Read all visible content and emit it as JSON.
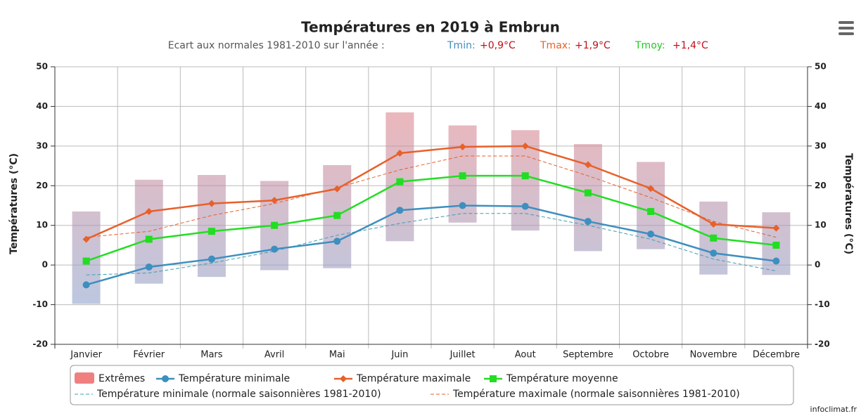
{
  "chart_data": {
    "type": "line",
    "title": "Températures en 2019 à Embrun",
    "subtitle": {
      "text": "Ecart aux normales 1981-2010 sur l'année :",
      "items": [
        {
          "label": "Tmin:",
          "value": "+0,9°C",
          "color": "#3d8fbf"
        },
        {
          "label": "Tmax:",
          "value": "+1,9°C",
          "color": "#e8602a"
        },
        {
          "label": "Tmoy:",
          "value": "+1,4°C",
          "color": "#22cc22"
        }
      ],
      "value_color": "#c0101a"
    },
    "y_label": "Températures (°C)",
    "y2_label": "Températures (°C)",
    "credit": "infoclimat.fr",
    "categories": [
      "Janvier",
      "Février",
      "Mars",
      "Avril",
      "Mai",
      "Juin",
      "Juillet",
      "Aout",
      "Septembre",
      "Octobre",
      "Novembre",
      "Décembre"
    ],
    "ylim": [
      -20,
      50
    ],
    "yticks": [
      -20,
      -10,
      0,
      10,
      20,
      30,
      40,
      50
    ],
    "y2lim": [
      -20,
      50
    ],
    "y2ticks": [
      -20,
      -10,
      0,
      10,
      20,
      30,
      40,
      50
    ],
    "grid": true,
    "extremes": {
      "name": "Extrêmes",
      "color_top": "#f08080",
      "color_bottom": "#7fa8d8",
      "low": [
        -9.8,
        -4.7,
        -3,
        -1.3,
        -0.8,
        6,
        10.7,
        8.7,
        3.5,
        4,
        -2.4,
        -2.5
      ],
      "high": [
        13.5,
        21.5,
        22.7,
        21.2,
        25.2,
        38.5,
        35.2,
        34,
        30.5,
        26,
        16,
        13.3
      ]
    },
    "series": [
      {
        "name": "Température minimale",
        "color": "#3d8fbf",
        "marker": "circle",
        "dashed": false,
        "values": [
          -5,
          -0.5,
          1.5,
          4,
          6,
          13.8,
          15,
          14.8,
          11,
          7.8,
          3,
          1
        ]
      },
      {
        "name": "Température maximale",
        "color": "#e8602a",
        "marker": "diamond",
        "dashed": false,
        "values": [
          6.5,
          13.5,
          15.5,
          16.3,
          19.2,
          28.2,
          29.8,
          30,
          25.3,
          19.3,
          10.3,
          9.3
        ]
      },
      {
        "name": "Température moyenne",
        "color": "#22dd22",
        "marker": "square",
        "dashed": false,
        "values": [
          1,
          6.5,
          8.5,
          10,
          12.5,
          21,
          22.5,
          22.5,
          18.2,
          13.5,
          6.8,
          5
        ]
      },
      {
        "name": "Température minimale (normale saisonnières 1981-2010)",
        "color": "#3d9fb0",
        "marker": "none",
        "dashed": true,
        "values": [
          -2.5,
          -2,
          0.5,
          3.5,
          7.5,
          10.5,
          13,
          13,
          10,
          6.5,
          1.5,
          -1.5
        ]
      },
      {
        "name": "Température maximale (normale saisonnières 1981-2010)",
        "color": "#e8602a",
        "marker": "none",
        "dashed": true,
        "values": [
          7,
          8.5,
          12.5,
          15.5,
          19.5,
          24,
          27.5,
          27.5,
          22.5,
          17,
          11,
          7
        ]
      }
    ]
  }
}
